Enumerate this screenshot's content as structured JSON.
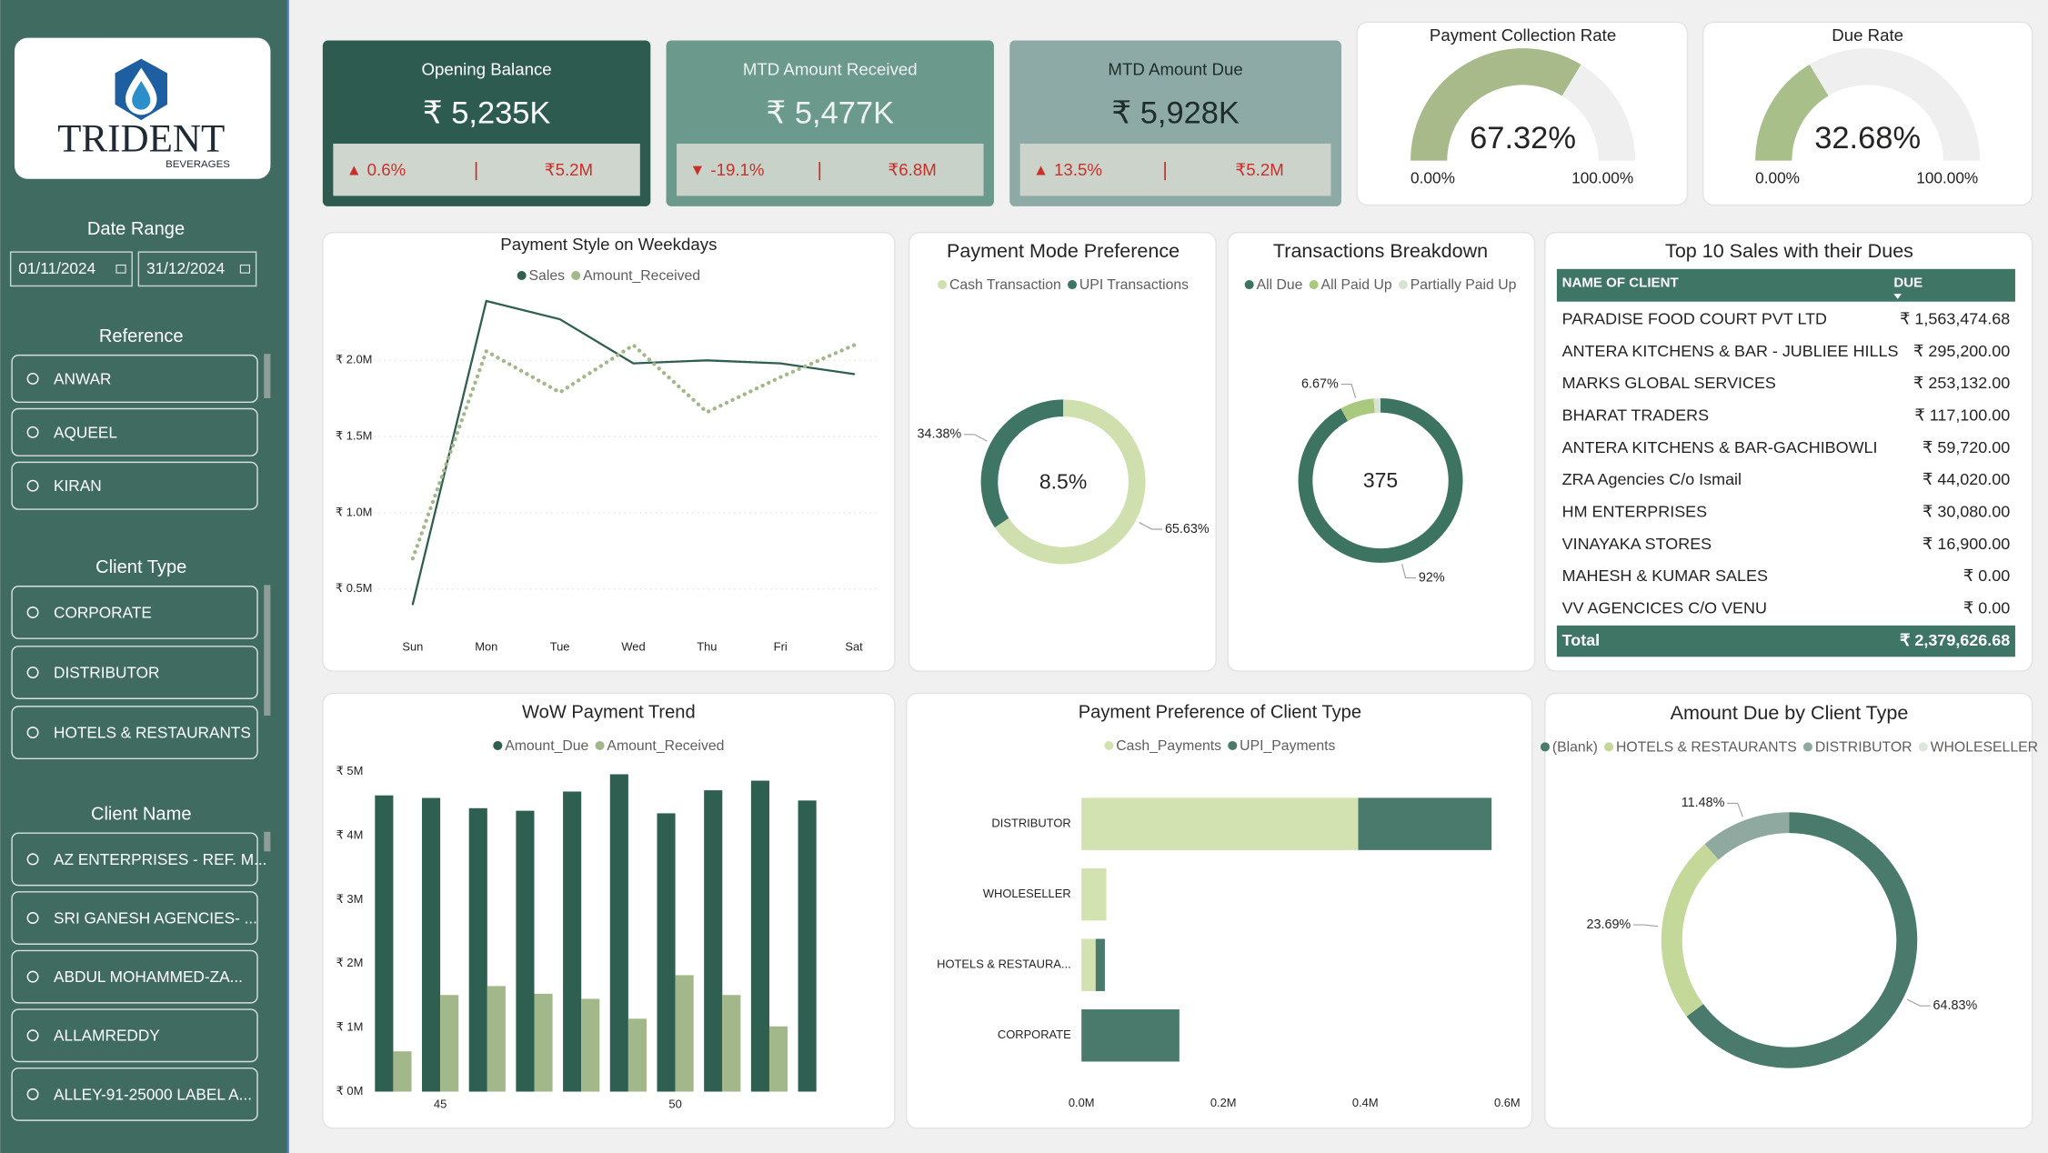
{
  "sidebar": {
    "logo": {
      "name": "TRIDENT",
      "tagline": "BEVERAGES"
    },
    "date_range": {
      "title": "Date Range",
      "start": "01/11/2024",
      "end": "31/12/2024"
    },
    "slicers": [
      {
        "title": "Reference",
        "items": [
          "ANWAR",
          "AQUEEL",
          "KIRAN"
        ]
      },
      {
        "title": "Client Type",
        "items": [
          "CORPORATE",
          "DISTRIBUTOR",
          "HOTELS & RESTAURANTS"
        ]
      },
      {
        "title": "Client Name",
        "items": [
          "AZ ENTERPRISES - REF. M...",
          "SRI GANESH AGENCIES- ...",
          "ABDUL MOHAMMED-ZA...",
          "ALLAMREDDY",
          "ALLEY-91-25000 LABEL A..."
        ]
      }
    ]
  },
  "kpis": [
    {
      "title": "Opening Balance",
      "value": "₹ 5,235K",
      "indicator": "▲",
      "change": "0.6%",
      "comparison": "₹5.2M"
    },
    {
      "title": "MTD Amount Received",
      "value": "₹ 5,477K",
      "indicator": "▼",
      "change": "-19.1%",
      "comparison": "₹6.8M"
    },
    {
      "title": "MTD Amount Due",
      "value": "₹ 5,928K",
      "indicator": "▲",
      "change": "13.5%",
      "comparison": "₹5.2M"
    }
  ],
  "chart_data": [
    {
      "type": "gauge",
      "title": "Payment Collection Rate",
      "values": [
        67.32
      ],
      "value_labels": [
        "67.32%"
      ],
      "range": [
        {
          "value": 0,
          "label": "0.00%"
        },
        {
          "value": 100,
          "label": "100.00%"
        }
      ],
      "color": "#a8b98a"
    },
    {
      "type": "gauge",
      "title": "Due Rate",
      "values": [
        32.68
      ],
      "value_labels": [
        "32.68%"
      ],
      "range": [
        {
          "value": 0,
          "label": "0.00%"
        },
        {
          "value": 100,
          "label": "100.00%"
        }
      ],
      "color": "#a8bf8a"
    },
    {
      "type": "line",
      "title": "Payment Style on Weekdays",
      "categories": [
        "Sun",
        "Mon",
        "Tue",
        "Wed",
        "Thu",
        "Fri",
        "Sat"
      ],
      "series": [
        {
          "name": "Sales",
          "color": "#2f5f50",
          "style": "solid",
          "values": [
            400000,
            2390000,
            2270000,
            1980000,
            2000000,
            1980000,
            1910000
          ]
        },
        {
          "name": "Amount_Received",
          "color": "#a3b88a",
          "style": "dotted",
          "values": [
            700000,
            2060000,
            1790000,
            2100000,
            1660000,
            1890000,
            2100000
          ]
        }
      ],
      "ylim": [
        400000,
        2400000
      ],
      "yticks": [
        {
          "value": 500000,
          "label": "₹ 0.5M"
        },
        {
          "value": 1000000,
          "label": "₹ 1.0M"
        },
        {
          "value": 1500000,
          "label": "₹ 1.5M"
        },
        {
          "value": 2000000,
          "label": "₹ 2.0M"
        }
      ],
      "grid": true
    },
    {
      "type": "donut",
      "title": "Payment Mode Preference",
      "categories": [
        "Cash Transaction",
        "UPI Transactions"
      ],
      "values": [
        65.63,
        34.38
      ],
      "value_labels": [
        "65.63%",
        "34.38%"
      ],
      "colors": [
        "#cfe0ae",
        "#3f7565"
      ],
      "center_label": "8.5%"
    },
    {
      "type": "donut",
      "title": "Transactions Breakdown",
      "categories": [
        "All Due",
        "All Paid Up",
        "Partially Paid Up"
      ],
      "values": [
        92,
        6.67,
        1.33
      ],
      "value_labels": [
        "92%",
        "6.67%",
        null
      ],
      "colors": [
        "#3d7361",
        "#a9c97e",
        "#d9e3d3"
      ],
      "center_label": "375"
    },
    {
      "type": "bar",
      "title": "WoW Payment Trend",
      "x": [
        44,
        45,
        46,
        47,
        48,
        49,
        50,
        51,
        52,
        53
      ],
      "xlim": [
        43.5,
        53.5
      ],
      "xticks": [
        45,
        50
      ],
      "series": [
        {
          "name": "Amount_Due",
          "color": "#2f5f50",
          "values": [
            4630000,
            4590000,
            4430000,
            4390000,
            4690000,
            4960000,
            4350000,
            4710000,
            4860000,
            4550000
          ]
        },
        {
          "name": "Amount_Received",
          "color": "#a3b88a",
          "values": [
            630000,
            1510000,
            1650000,
            1530000,
            1450000,
            1140000,
            1820000,
            1510000,
            1020000,
            null
          ]
        }
      ],
      "ylim": [
        0,
        5000000
      ],
      "yticks": [
        {
          "value": 0,
          "label": "₹ 0M"
        },
        {
          "value": 1000000,
          "label": "₹ 1M"
        },
        {
          "value": 2000000,
          "label": "₹ 2M"
        },
        {
          "value": 3000000,
          "label": "₹ 3M"
        },
        {
          "value": 4000000,
          "label": "₹ 4M"
        },
        {
          "value": 5000000,
          "label": "₹ 5M"
        }
      ],
      "grid": false
    },
    {
      "type": "stacked_bar_h",
      "title": "Payment Preference of Client Type",
      "categories": [
        "DISTRIBUTOR",
        "WHOLESELLER",
        "HOTELS & RESTAURA...",
        "CORPORATE"
      ],
      "series": [
        {
          "name": "Cash_Payments",
          "color": "#d2e2b0",
          "values": [
            390000,
            35000,
            20000,
            0
          ]
        },
        {
          "name": "UPI_Payments",
          "color": "#4a7a6c",
          "values": [
            188000,
            0,
            13000,
            138000
          ]
        }
      ],
      "xlim": [
        0,
        600000
      ],
      "xticks": [
        {
          "value": 0,
          "label": "0.0M"
        },
        {
          "value": 200000,
          "label": "0.2M"
        },
        {
          "value": 400000,
          "label": "0.4M"
        },
        {
          "value": 600000,
          "label": "0.6M"
        }
      ]
    },
    {
      "type": "donut",
      "title": "Amount Due by Client Type",
      "categories": [
        "(Blank)",
        "HOTELS & RESTAURANTS",
        "DISTRIBUTOR",
        "WHOLESELLER"
      ],
      "values": [
        64.83,
        23.69,
        11.48,
        0
      ],
      "value_labels": [
        "64.83%",
        "23.69%",
        "11.48%",
        null
      ],
      "colors": [
        "#4a7a6c",
        "#c4d89a",
        "#8fa9a0",
        "#dbe6dd"
      ]
    }
  ],
  "table": {
    "title": "Top 10 Sales with their Dues",
    "columns": [
      "NAME OF CLIENT",
      "DUE"
    ],
    "rows": [
      [
        "PARADISE FOOD COURT PVT LTD",
        "₹ 1,563,474.68"
      ],
      [
        "ANTERA KITCHENS & BAR - JUBLIEE HILLS",
        "₹ 295,200.00"
      ],
      [
        "MARKS GLOBAL SERVICES",
        "₹ 253,132.00"
      ],
      [
        "BHARAT TRADERS",
        "₹ 117,100.00"
      ],
      [
        "ANTERA KITCHENS & BAR-GACHIBOWLI",
        "₹ 59,720.00"
      ],
      [
        "ZRA Agencies C/o Ismail",
        "₹ 44,020.00"
      ],
      [
        "HM ENTERPRISES",
        "₹ 30,080.00"
      ],
      [
        "VINAYAKA STORES",
        "₹ 16,900.00"
      ],
      [
        "MAHESH & KUMAR SALES",
        "₹ 0.00"
      ],
      [
        "VV AGENCICES C/O VENU",
        "₹ 0.00"
      ]
    ],
    "total": [
      "Total",
      "₹ 2,379,626.68"
    ]
  }
}
